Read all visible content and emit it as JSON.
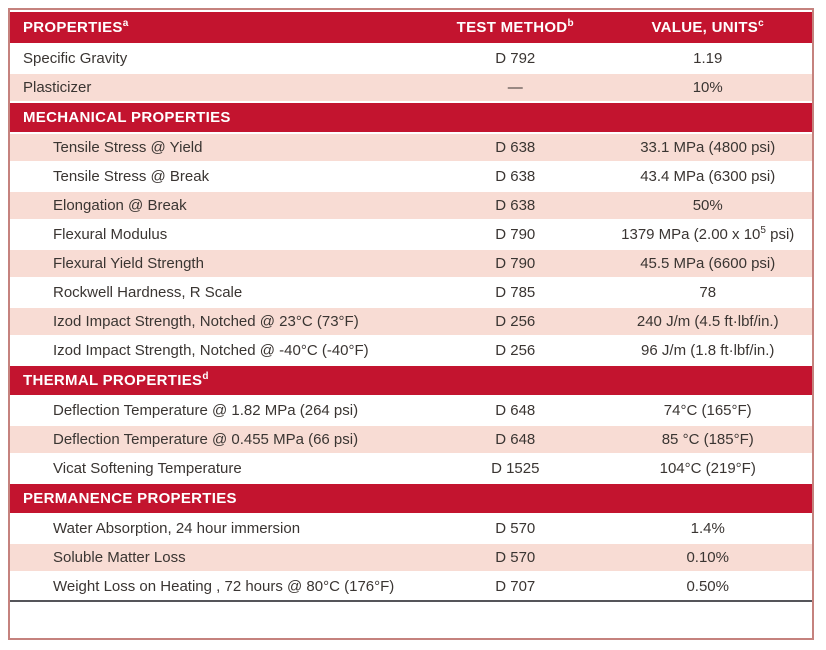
{
  "table": {
    "colors": {
      "header_red": "#c3142f",
      "row_pink": "#f8dcd4",
      "row_white": "#ffffff",
      "outer_border": "#c5827e",
      "bottom_rule": "#55555a",
      "body_text": "#3a3532"
    },
    "columns": [
      {
        "label": "PROPERTIES",
        "sup": "a"
      },
      {
        "label": "TEST METHOD",
        "sup": "b"
      },
      {
        "label": "VALUE, UNITS",
        "sup": "c"
      }
    ],
    "rows": [
      {
        "type": "data",
        "shade": "white",
        "indent": false,
        "property": "Specific Gravity",
        "method": "D 792",
        "value": "1.19"
      },
      {
        "type": "data",
        "shade": "pink",
        "indent": false,
        "property": "Plasticizer",
        "method": "—",
        "value": "10%"
      },
      {
        "type": "section",
        "label": "MECHANICAL PROPERTIES",
        "sup": ""
      },
      {
        "type": "data",
        "shade": "pink",
        "indent": true,
        "property": "Tensile Stress @ Yield",
        "method": "D 638",
        "value": "33.1 MPa (4800 psi)"
      },
      {
        "type": "data",
        "shade": "white",
        "indent": true,
        "property": "Tensile Stress @ Break",
        "method": "D 638",
        "value": "43.4 MPa (6300 psi)"
      },
      {
        "type": "data",
        "shade": "pink",
        "indent": true,
        "property": "Elongation @ Break",
        "method": "D 638",
        "value": "50%"
      },
      {
        "type": "data",
        "shade": "white",
        "indent": true,
        "property": "Flexural Modulus",
        "method": "D 790",
        "value": "1379 MPa (2.00 x 10",
        "value_sup": "5",
        "value_end": " psi)"
      },
      {
        "type": "data",
        "shade": "pink",
        "indent": true,
        "property": "Flexural Yield Strength",
        "method": "D 790",
        "value": "45.5 MPa (6600 psi)"
      },
      {
        "type": "data",
        "shade": "white",
        "indent": true,
        "property": "Rockwell Hardness, R Scale",
        "method": "D 785",
        "value": "78"
      },
      {
        "type": "data",
        "shade": "pink",
        "indent": true,
        "property": "Izod Impact Strength, Notched @ 23°C (73°F)",
        "method": "D 256",
        "value": "240 J/m (4.5 ft·lbf/in.)"
      },
      {
        "type": "data",
        "shade": "white",
        "indent": true,
        "property": "Izod Impact Strength, Notched @ -40°C (-40°F)",
        "method": "D 256",
        "value": "96 J/m (1.8 ft·lbf/in.)"
      },
      {
        "type": "section",
        "label": "THERMAL PROPERTIES",
        "sup": "d"
      },
      {
        "type": "data",
        "shade": "white",
        "indent": true,
        "property": "Deflection Temperature @ 1.82 MPa (264 psi)",
        "method": "D 648",
        "value": "74°C (165°F)"
      },
      {
        "type": "data",
        "shade": "pink",
        "indent": true,
        "property": "Deflection Temperature @ 0.455 MPa (66 psi)",
        "method": "D 648",
        "value": "85 °C (185°F)"
      },
      {
        "type": "data",
        "shade": "white",
        "indent": true,
        "property": "Vicat Softening Temperature",
        "method": "D 1525",
        "value": "104°C (219°F)"
      },
      {
        "type": "section",
        "label": "PERMANENCE PROPERTIES",
        "sup": ""
      },
      {
        "type": "data",
        "shade": "white",
        "indent": true,
        "property": "Water Absorption, 24 hour immersion",
        "method": "D 570",
        "value": "1.4%"
      },
      {
        "type": "data",
        "shade": "pink",
        "indent": true,
        "property": "Soluble Matter Loss",
        "method": "D 570",
        "value": "0.10%"
      },
      {
        "type": "data",
        "shade": "white",
        "indent": true,
        "property": "Weight Loss on Heating , 72 hours @ 80°C (176°F)",
        "method": "D 707",
        "value": "0.50%"
      }
    ]
  }
}
